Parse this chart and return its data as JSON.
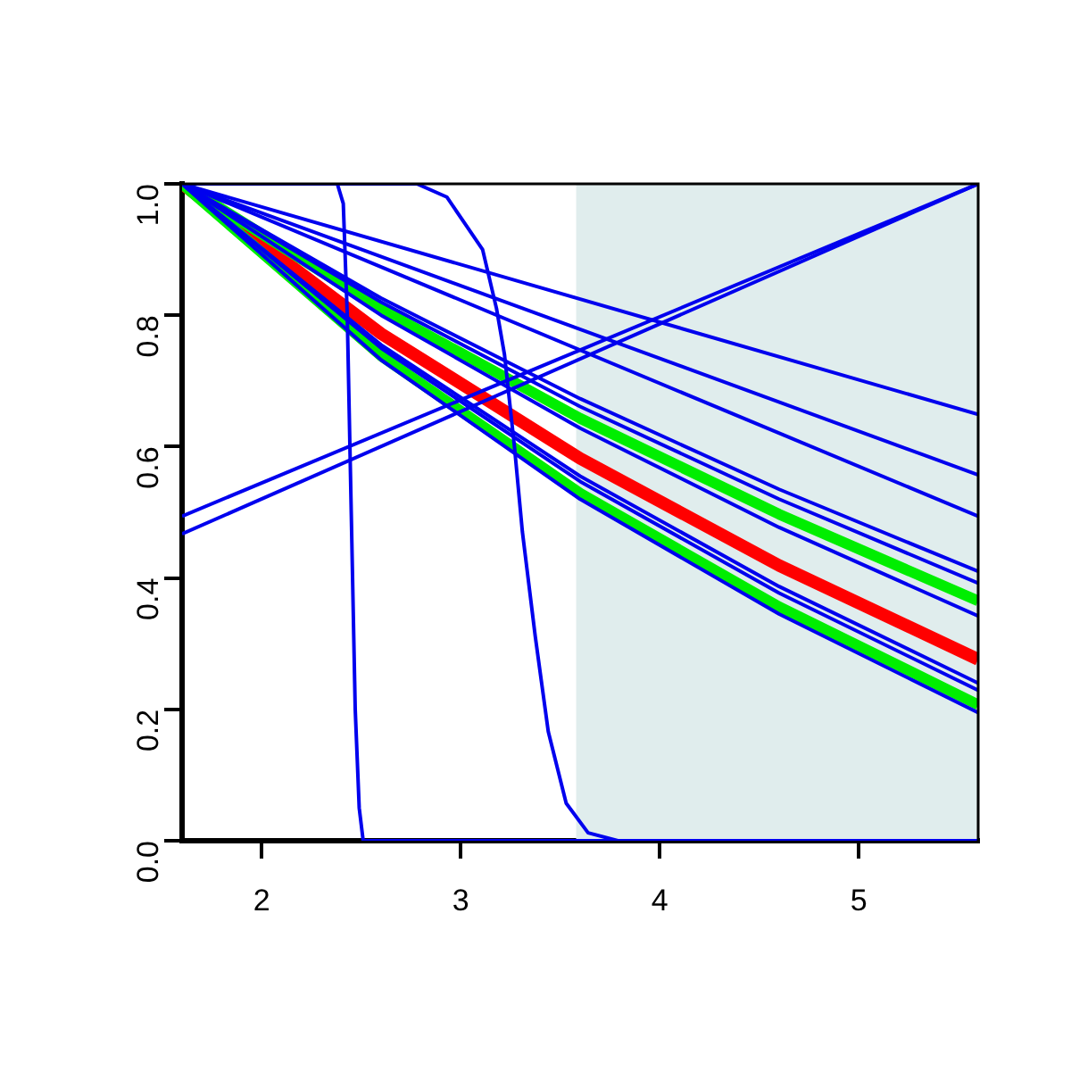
{
  "chart_data": {
    "type": "line",
    "xlim": [
      1.6,
      5.6
    ],
    "ylim": [
      0,
      1
    ],
    "xticks": [
      2,
      3,
      4,
      5
    ],
    "yticks": [
      {
        "value": 0,
        "label": "0.0"
      },
      {
        "value": 0.2,
        "label": "0.2"
      },
      {
        "value": 0.4,
        "label": "0.4"
      },
      {
        "value": 0.6,
        "label": "0.6"
      },
      {
        "value": 0.8,
        "label": "0.8"
      },
      {
        "value": 1,
        "label": "1.0"
      }
    ],
    "grid": false,
    "legend": false,
    "marker": "none",
    "line_style": "solid",
    "bands": [
      {
        "axis": "x",
        "from": 3.58,
        "to": 5.6,
        "color": "#e0eded"
      }
    ],
    "series": [
      {
        "color": "#0000ee",
        "x": [
          1.6,
          5.6
        ],
        "values": [
          1,
          0.649
        ]
      },
      {
        "color": "#0000ee",
        "x": [
          1.6,
          5.6
        ],
        "values": [
          1,
          0.557
        ]
      },
      {
        "color": "#0000ee",
        "x": [
          1.6,
          5.6
        ],
        "values": [
          1,
          0.494
        ]
      },
      {
        "color": "#0000ee",
        "x": [
          1.6,
          2.6,
          3.6,
          4.6,
          5.6
        ],
        "values": [
          1,
          0.826,
          0.673,
          0.535,
          0.41
        ]
      },
      {
        "color": "#0000ee",
        "x": [
          1.6,
          2.6,
          3.6,
          4.6,
          5.6
        ],
        "values": [
          1,
          0.82,
          0.661,
          0.52,
          0.392
        ]
      },
      {
        "color": "#0000ee",
        "x": [
          1.6,
          2.6,
          3.6,
          4.6,
          5.6
        ],
        "values": [
          1,
          0.8,
          0.628,
          0.477,
          0.342
        ]
      },
      {
        "color": "#0000ee",
        "x": [
          1.6,
          2.6,
          3.6,
          4.6,
          5.6
        ],
        "values": [
          1,
          0.755,
          0.555,
          0.387,
          0.24
        ]
      },
      {
        "color": "#0000ee",
        "x": [
          1.6,
          2.6,
          3.6,
          4.6,
          5.6
        ],
        "values": [
          1,
          0.75,
          0.547,
          0.377,
          0.229
        ]
      },
      {
        "color": "#0000ee",
        "x": [
          1.6,
          2.6,
          3.6,
          4.6,
          5.6
        ],
        "values": [
          1,
          0.732,
          0.52,
          0.345,
          0.195
        ]
      },
      {
        "color": "#0000ee",
        "x": [
          1.6,
          5.6
        ],
        "values": [
          0.494,
          1
        ]
      },
      {
        "color": "#0000ee",
        "x": [
          1.6,
          5.6
        ],
        "values": [
          0.467,
          1
        ]
      },
      {
        "color": "#0000ee",
        "x": [
          1.6,
          2.38,
          2.41,
          2.43,
          2.45,
          2.47,
          2.49,
          2.51,
          5.6
        ],
        "values": [
          1,
          1,
          0.97,
          0.8,
          0.5,
          0.2,
          0.05,
          0,
          0
        ]
      },
      {
        "color": "#0000ee",
        "x": [
          1.6,
          2.78,
          2.93,
          3.11,
          3.18,
          3.22,
          3.27,
          3.31,
          3.375,
          3.44,
          3.53,
          3.64,
          3.79,
          5.6
        ],
        "values": [
          1,
          1,
          0.98,
          0.9,
          0.81,
          0.74,
          0.6,
          0.47,
          0.31,
          0.166,
          0.057,
          0.012,
          0,
          0
        ]
      },
      {
        "color": "#00ee00",
        "x": [
          1.6,
          2.6,
          3.6,
          4.6,
          5.6
        ],
        "values": [
          1,
          0.809,
          0.643,
          0.497,
          0.365
        ]
      },
      {
        "color": "#00ee00",
        "x": [
          1.6,
          2.6,
          3.6,
          4.6,
          5.6
        ],
        "values": [
          1,
          0.738,
          0.529,
          0.356,
          0.207
        ]
      },
      {
        "color": "#ff0000",
        "x": [
          1.6,
          2.6,
          3.6,
          4.6,
          5.6
        ],
        "values": [
          1,
          0.772,
          0.582,
          0.419,
          0.276
        ]
      }
    ]
  }
}
